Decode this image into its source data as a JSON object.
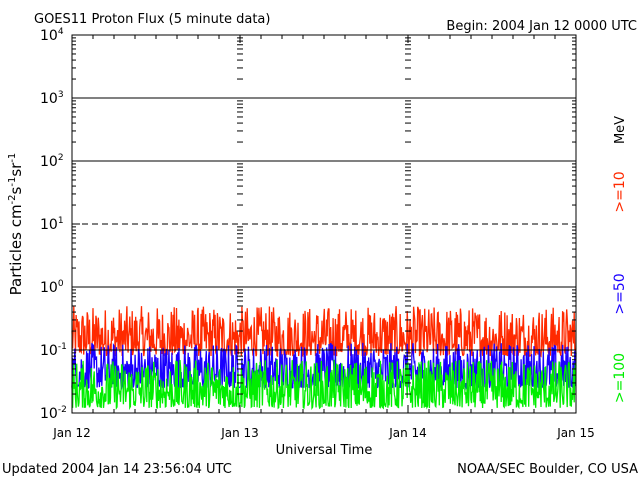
{
  "chart_data": {
    "type": "line",
    "title": "GOES11 Proton Flux (5 minute data)",
    "begin_label": "Begin: 2004 Jan 12 0000 UTC",
    "xlabel": "Universal Time",
    "ylabel_base": "Particles cm",
    "ylabel_sup1": "-2",
    "ylabel_s": "s",
    "ylabel_sup2": "-1",
    "ylabel_sr": "sr",
    "ylabel_sup3": "-1",
    "yscale": "log",
    "ylim": [
      0.01,
      10000
    ],
    "y_ticks": [
      {
        "base": "10",
        "exp": "-2",
        "value": 0.01
      },
      {
        "base": "10",
        "exp": "-1",
        "value": 0.1
      },
      {
        "base": "10",
        "exp": "0",
        "value": 1
      },
      {
        "base": "10",
        "exp": "1",
        "value": 10
      },
      {
        "base": "10",
        "exp": "2",
        "value": 100
      },
      {
        "base": "10",
        "exp": "3",
        "value": 1000
      },
      {
        "base": "10",
        "exp": "4",
        "value": 10000
      }
    ],
    "x_ticks": [
      "Jan 12",
      "Jan 13",
      "Jan 14",
      "Jan 15"
    ],
    "xlim_days": [
      0,
      3
    ],
    "threshold_lines": [
      {
        "value": 1000,
        "style": "solid"
      },
      {
        "value": 100,
        "style": "solid"
      },
      {
        "value": 10,
        "style": "dashed"
      },
      {
        "value": 1,
        "style": "solid"
      },
      {
        "value": 0.1,
        "style": "solid"
      }
    ],
    "series": [
      {
        "name": ">=10",
        "color": "#ff2a00",
        "typical_range": [
          0.08,
          0.5
        ]
      },
      {
        "name": ">=50",
        "color": "#1a00ff",
        "typical_range": [
          0.025,
          0.13
        ]
      },
      {
        "name": ">=100",
        "color": "#00ee00",
        "typical_range": [
          0.012,
          0.07
        ]
      }
    ],
    "unit_label": "MeV"
  },
  "footer": {
    "updated": "Updated 2004 Jan 14 23:56:04 UTC",
    "credit": "NOAA/SEC Boulder, CO USA"
  }
}
